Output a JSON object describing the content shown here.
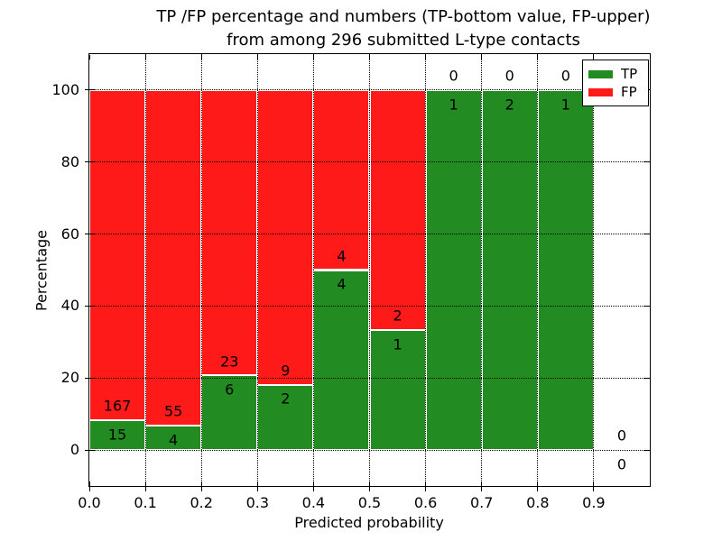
{
  "title": {
    "line1": "TP /FP percentage and numbers (TP-bottom value, FP-upper)",
    "line2": "from among 296 submitted L-type contacts"
  },
  "axes": {
    "x_label": "Predicted probability",
    "y_label": "Percentage",
    "x_tick_labels": [
      "0.0",
      "0.1",
      "0.2",
      "0.3",
      "0.4",
      "0.5",
      "0.6",
      "0.7",
      "0.8",
      "0.9"
    ],
    "x_tick_values": [
      0.0,
      0.1,
      0.2,
      0.3,
      0.4,
      0.5,
      0.6,
      0.7,
      0.8,
      0.9
    ],
    "y_tick_labels": [
      "0",
      "20",
      "40",
      "60",
      "80",
      "100"
    ],
    "y_tick_values": [
      0,
      20,
      40,
      60,
      80,
      100
    ],
    "xlim": [
      0.0,
      1.0
    ],
    "ylim": [
      -10,
      110
    ],
    "grid_style": "dotted"
  },
  "legend": {
    "position": "upper right",
    "items": [
      {
        "label": "TP",
        "color": "#228b22"
      },
      {
        "label": "FP",
        "color": "#ff1a1a"
      }
    ]
  },
  "colors": {
    "tp": "#228b22",
    "fp": "#ff1a1a",
    "bar_edge": "#ffffff",
    "grid": "#000000",
    "frame": "#000000",
    "background": "#ffffff"
  },
  "chart_data": {
    "type": "bar",
    "stacked": true,
    "normalized": "percent of contacts per bin",
    "title": "TP /FP percentage and numbers (TP-bottom value, FP-upper) from among 296 submitted L-type contacts",
    "xlabel": "Predicted probability",
    "ylabel": "Percentage",
    "xlim": [
      0.0,
      1.0
    ],
    "ylim": [
      -10,
      110
    ],
    "grid": true,
    "legend_position": "upper right",
    "total_contacts": 296,
    "bin_edges": [
      0.0,
      0.1,
      0.2,
      0.3,
      0.4,
      0.5,
      0.6,
      0.7,
      0.8,
      0.9,
      1.0
    ],
    "categories": [
      "0.0-0.1",
      "0.1-0.2",
      "0.2-0.3",
      "0.3-0.4",
      "0.4-0.5",
      "0.5-0.6",
      "0.6-0.7",
      "0.7-0.8",
      "0.8-0.9",
      "0.9-1.0"
    ],
    "series": [
      {
        "name": "TP",
        "color": "#228b22",
        "counts": [
          15,
          4,
          6,
          2,
          4,
          1,
          1,
          2,
          1,
          0
        ],
        "percent": [
          8.24,
          6.78,
          20.69,
          18.18,
          50.0,
          33.33,
          100.0,
          100.0,
          100.0,
          null
        ]
      },
      {
        "name": "FP",
        "color": "#ff1a1a",
        "counts": [
          167,
          55,
          23,
          9,
          4,
          2,
          0,
          0,
          0,
          0
        ],
        "percent": [
          91.76,
          93.22,
          79.31,
          81.82,
          50.0,
          66.67,
          0.0,
          0.0,
          0.0,
          null
        ]
      }
    ],
    "annotation_rule": "FP count printed above TP/FP boundary, TP count printed below boundary, centered on each bin"
  }
}
